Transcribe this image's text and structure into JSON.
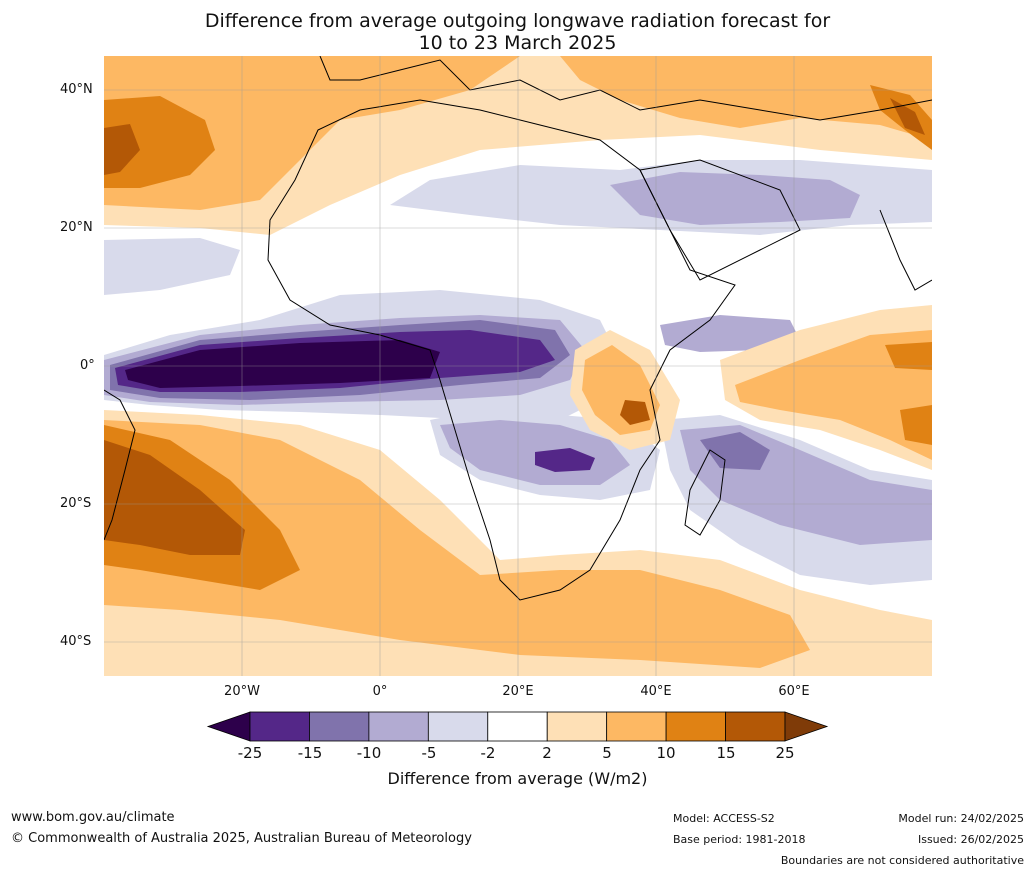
{
  "title_line1": "Difference from average outgoing longwave radiation forecast for",
  "title_line2": "10 to 23 March 2025",
  "lat_ticks": [
    "40°N",
    "20°N",
    "0°",
    "20°S",
    "40°S"
  ],
  "lon_ticks": [
    "20°W",
    "0°",
    "20°E",
    "40°E",
    "60°E"
  ],
  "colorbar": {
    "labels": [
      "-25",
      "-15",
      "-10",
      "-5",
      "-2",
      "2",
      "5",
      "10",
      "15",
      "25"
    ],
    "colors": [
      "#2d004b",
      "#542788",
      "#8073ac",
      "#b2abd2",
      "#d8daeb",
      "#ffffff",
      "#fee0b6",
      "#fdb863",
      "#e08214",
      "#b35806",
      "#7f3b08"
    ],
    "title": "Difference from average (W/m2)"
  },
  "footer": {
    "website": "www.bom.gov.au/climate",
    "copyright": "© Commonwealth of Australia 2025, Australian Bureau of Meteorology",
    "model": "Model: ACCESS-S2",
    "base_period": "Base period: 1981-2018",
    "model_run": "Model run: 24/02/2025",
    "issued": "Issued: 26/02/2025",
    "disclaimer": "Boundaries are not considered authoritative"
  }
}
